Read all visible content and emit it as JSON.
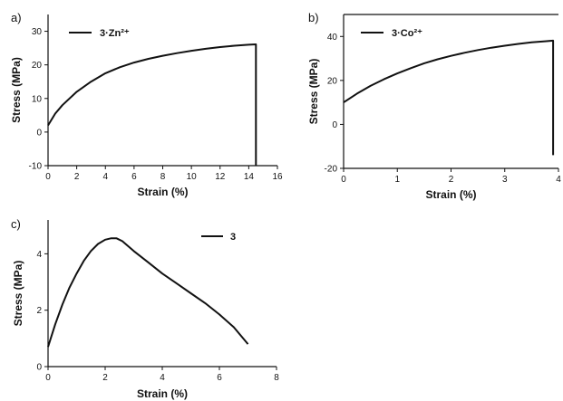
{
  "chart_data": [
    {
      "type": "line",
      "panel_label": "a)",
      "xlabel": "Strain (%)",
      "ylabel": "Stress (MPa)",
      "xlim": [
        0,
        16
      ],
      "ylim": [
        -10,
        35
      ],
      "x_ticks": [
        "0",
        "2",
        "4",
        "6",
        "8",
        "10",
        "12",
        "14",
        "16"
      ],
      "y_ticks": [
        "-10",
        "0",
        "10",
        "20",
        "30"
      ],
      "x_tick_values": [
        0,
        2,
        4,
        6,
        8,
        10,
        12,
        14,
        16
      ],
      "y_tick_values": [
        -10,
        0,
        10,
        20,
        30
      ],
      "legend_position": "top-left",
      "series": [
        {
          "name": "3·Zn²⁺",
          "x": [
            0,
            0.5,
            1,
            2,
            3,
            4,
            5,
            6,
            7,
            8,
            9,
            10,
            11,
            12,
            13,
            14,
            14.5,
            14.5
          ],
          "y": [
            2,
            5.5,
            8,
            12,
            15,
            17.5,
            19.3,
            20.7,
            21.8,
            22.7,
            23.5,
            24.2,
            24.8,
            25.3,
            25.7,
            26,
            26.1,
            -10
          ]
        }
      ]
    },
    {
      "type": "line",
      "panel_label": "b)",
      "xlabel": "Strain (%)",
      "ylabel": "Stress (MPa)",
      "xlim": [
        0,
        4
      ],
      "ylim": [
        -20,
        50
      ],
      "x_ticks": [
        "0",
        "1",
        "2",
        "3",
        "4"
      ],
      "y_ticks": [
        "-20",
        "0",
        "20",
        "40"
      ],
      "x_tick_values": [
        0,
        1,
        2,
        3,
        4
      ],
      "y_tick_values": [
        -20,
        0,
        20,
        40
      ],
      "legend_position": "top-left",
      "series": [
        {
          "name": "3·Co²⁺",
          "x": [
            0,
            0.25,
            0.5,
            0.75,
            1,
            1.25,
            1.5,
            1.75,
            2,
            2.25,
            2.5,
            2.75,
            3,
            3.25,
            3.5,
            3.75,
            3.9,
            3.9
          ],
          "y": [
            10,
            14,
            17.5,
            20.5,
            23.2,
            25.6,
            27.8,
            29.6,
            31.2,
            32.6,
            33.8,
            34.9,
            35.8,
            36.6,
            37.3,
            37.8,
            38.1,
            -14
          ]
        }
      ]
    },
    {
      "type": "line",
      "panel_label": "c)",
      "xlabel": "Strain (%)",
      "ylabel": "Stress (MPa)",
      "xlim": [
        0,
        8
      ],
      "ylim": [
        0,
        5.2
      ],
      "x_ticks": [
        "0",
        "2",
        "4",
        "6",
        "8"
      ],
      "y_ticks": [
        "0",
        "2",
        "4"
      ],
      "x_tick_values": [
        0,
        2,
        4,
        6,
        8
      ],
      "y_tick_values": [
        0,
        2,
        4
      ],
      "legend_position": "top-right",
      "series": [
        {
          "name": "3",
          "x": [
            0,
            0.25,
            0.5,
            0.75,
            1,
            1.25,
            1.5,
            1.75,
            2,
            2.2,
            2.4,
            2.6,
            3,
            3.5,
            4,
            4.5,
            5,
            5.5,
            6,
            6.5,
            7
          ],
          "y": [
            0.7,
            1.5,
            2.2,
            2.8,
            3.3,
            3.75,
            4.1,
            4.35,
            4.5,
            4.55,
            4.55,
            4.45,
            4.1,
            3.7,
            3.3,
            2.95,
            2.6,
            2.25,
            1.85,
            1.4,
            0.8
          ]
        }
      ]
    }
  ]
}
